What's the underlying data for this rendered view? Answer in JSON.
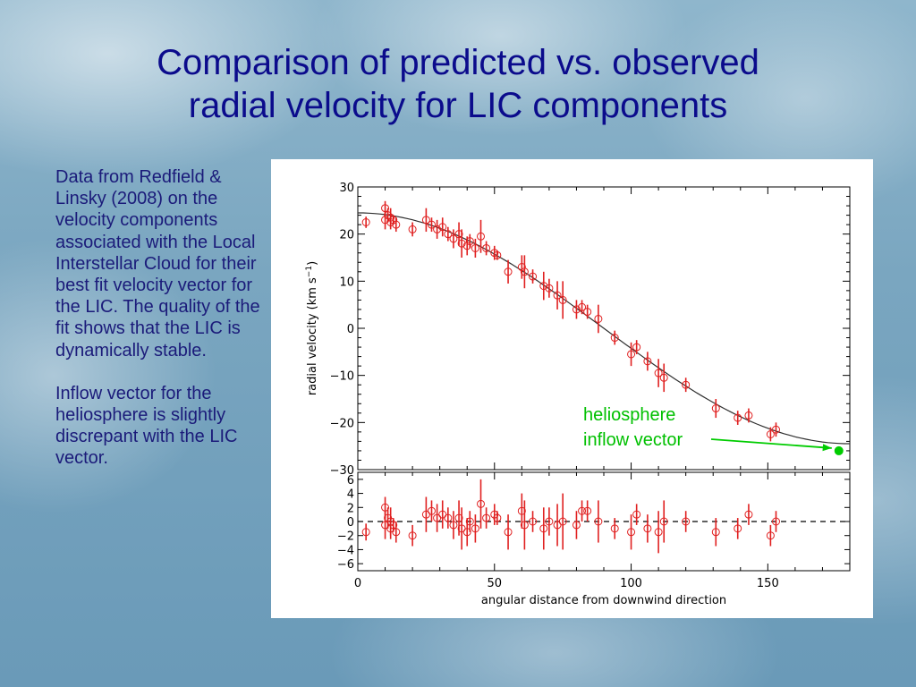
{
  "slide": {
    "title_line1": "Comparison of predicted vs. observed",
    "title_line2": "radial velocity for LIC components",
    "description_p1": "Data from Redfield & Linsky (2008) on the velocity components associated with the Local Interstellar Cloud for their best fit velocity vector for the LIC.  The quality of the fit shows that the LIC is dynamically stable.",
    "description_p2": "Inflow vector for the heliosphere is slightly discrepant with the LIC vector."
  },
  "annotation": {
    "line1": "heliosphere",
    "line2": "inflow vector",
    "color": "#00cc00"
  },
  "chart_data": [
    {
      "type": "scatter",
      "panel": "top",
      "xlabel": "angular distance from downwind direction",
      "ylabel": "radial velocity (km s",
      "ylabel_unit_sup": "−1",
      "ylabel_close": ")",
      "xlim": [
        0,
        180
      ],
      "ylim": [
        -30,
        30
      ],
      "xticks": [
        0,
        50,
        100,
        150
      ],
      "yticks": [
        30,
        20,
        10,
        0,
        -10,
        -20,
        -30
      ],
      "ytick_labels": [
        "30",
        "20",
        "10",
        "0",
        "−10",
        "−20",
        "−30"
      ],
      "point_color": "#e02020",
      "model_curve": {
        "name": "fit",
        "amplitude": 24.5,
        "function": "cos",
        "color": "#303030"
      },
      "heliosphere_point": {
        "x": 176,
        "y": -26,
        "color": "#00cc00"
      },
      "series": [
        {
          "points": [
            {
              "x": 3,
              "y": 22.5,
              "err": 1.2
            },
            {
              "x": 10,
              "y": 25.5,
              "err": 1.5
            },
            {
              "x": 10,
              "y": 23,
              "err": 2
            },
            {
              "x": 11,
              "y": 24,
              "err": 1.5
            },
            {
              "x": 12,
              "y": 23.5,
              "err": 2
            },
            {
              "x": 12,
              "y": 22.5,
              "err": 1.5
            },
            {
              "x": 13,
              "y": 23,
              "err": 1
            },
            {
              "x": 14,
              "y": 22,
              "err": 1.5
            },
            {
              "x": 20,
              "y": 21,
              "err": 1.5
            },
            {
              "x": 25,
              "y": 23,
              "err": 2.5
            },
            {
              "x": 27,
              "y": 22,
              "err": 1.5
            },
            {
              "x": 29,
              "y": 21,
              "err": 2
            },
            {
              "x": 31,
              "y": 21.5,
              "err": 2
            },
            {
              "x": 33,
              "y": 20,
              "err": 1.5
            },
            {
              "x": 35,
              "y": 19,
              "err": 2
            },
            {
              "x": 37,
              "y": 20,
              "err": 2.5
            },
            {
              "x": 38,
              "y": 18,
              "err": 3
            },
            {
              "x": 40,
              "y": 17.5,
              "err": 2
            },
            {
              "x": 41,
              "y": 18.5,
              "err": 1.5
            },
            {
              "x": 43,
              "y": 17,
              "err": 2
            },
            {
              "x": 45,
              "y": 19.5,
              "err": 3.5
            },
            {
              "x": 47,
              "y": 17,
              "err": 1.5
            },
            {
              "x": 50,
              "y": 16,
              "err": 1.5
            },
            {
              "x": 51,
              "y": 15.5,
              "err": 1
            },
            {
              "x": 55,
              "y": 12,
              "err": 2.5
            },
            {
              "x": 60,
              "y": 13,
              "err": 2.5
            },
            {
              "x": 61,
              "y": 12,
              "err": 3.5
            },
            {
              "x": 64,
              "y": 11,
              "err": 1.5
            },
            {
              "x": 68,
              "y": 9,
              "err": 3
            },
            {
              "x": 70,
              "y": 8.5,
              "err": 2
            },
            {
              "x": 73,
              "y": 7,
              "err": 3
            },
            {
              "x": 75,
              "y": 6,
              "err": 4
            },
            {
              "x": 80,
              "y": 4,
              "err": 2
            },
            {
              "x": 82,
              "y": 4.5,
              "err": 1.5
            },
            {
              "x": 84,
              "y": 3.5,
              "err": 1.5
            },
            {
              "x": 88,
              "y": 2,
              "err": 3
            },
            {
              "x": 94,
              "y": -2,
              "err": 1.5
            },
            {
              "x": 100,
              "y": -5.5,
              "err": 2.5
            },
            {
              "x": 102,
              "y": -4,
              "err": 1.5
            },
            {
              "x": 106,
              "y": -7,
              "err": 2
            },
            {
              "x": 110,
              "y": -9.5,
              "err": 3
            },
            {
              "x": 112,
              "y": -10.5,
              "err": 3
            },
            {
              "x": 120,
              "y": -12,
              "err": 1.5
            },
            {
              "x": 131,
              "y": -17,
              "err": 2
            },
            {
              "x": 139,
              "y": -19,
              "err": 1.5
            },
            {
              "x": 143,
              "y": -18.5,
              "err": 1.5
            },
            {
              "x": 151,
              "y": -22.5,
              "err": 1.5
            },
            {
              "x": 153,
              "y": -21.5,
              "err": 1.5
            }
          ]
        }
      ]
    },
    {
      "type": "scatter",
      "panel": "residuals",
      "xlim": [
        0,
        180
      ],
      "ylim": [
        -7,
        7
      ],
      "yticks": [
        6,
        4,
        2,
        0,
        -2,
        -4,
        -6
      ],
      "ytick_labels": [
        "6",
        "4",
        "2",
        "0",
        "−2",
        "−4",
        "−6"
      ],
      "xticks": [
        0,
        50,
        100,
        150
      ],
      "xtick_labels": [
        "0",
        "50",
        "100",
        "150"
      ],
      "zero_line": "dashed",
      "series": [
        {
          "points": [
            {
              "x": 3,
              "y": -1.5,
              "err": 1.2
            },
            {
              "x": 10,
              "y": 2,
              "err": 1.5
            },
            {
              "x": 10,
              "y": -0.5,
              "err": 2
            },
            {
              "x": 11,
              "y": 0.5,
              "err": 1.5
            },
            {
              "x": 12,
              "y": 0,
              "err": 2
            },
            {
              "x": 12,
              "y": -1,
              "err": 1.5
            },
            {
              "x": 13,
              "y": -0.5,
              "err": 1
            },
            {
              "x": 14,
              "y": -1.5,
              "err": 1.5
            },
            {
              "x": 20,
              "y": -2,
              "err": 1.5
            },
            {
              "x": 25,
              "y": 1,
              "err": 2.5
            },
            {
              "x": 27,
              "y": 1.5,
              "err": 1.5
            },
            {
              "x": 29,
              "y": 0.5,
              "err": 2
            },
            {
              "x": 31,
              "y": 1,
              "err": 2
            },
            {
              "x": 33,
              "y": 0.5,
              "err": 1.5
            },
            {
              "x": 35,
              "y": -0.5,
              "err": 2
            },
            {
              "x": 37,
              "y": 0.5,
              "err": 2.5
            },
            {
              "x": 38,
              "y": -1,
              "err": 3
            },
            {
              "x": 40,
              "y": -1.5,
              "err": 2
            },
            {
              "x": 41,
              "y": 0,
              "err": 1.5
            },
            {
              "x": 43,
              "y": -1,
              "err": 2
            },
            {
              "x": 45,
              "y": 2.5,
              "err": 3.5
            },
            {
              "x": 47,
              "y": 0.5,
              "err": 1.5
            },
            {
              "x": 50,
              "y": 1,
              "err": 1.5
            },
            {
              "x": 51,
              "y": 0.5,
              "err": 1
            },
            {
              "x": 55,
              "y": -1.5,
              "err": 2.5
            },
            {
              "x": 60,
              "y": 1.5,
              "err": 2.5
            },
            {
              "x": 61,
              "y": -0.5,
              "err": 3.5
            },
            {
              "x": 64,
              "y": 0,
              "err": 1.5
            },
            {
              "x": 68,
              "y": -1,
              "err": 3
            },
            {
              "x": 70,
              "y": 0,
              "err": 2
            },
            {
              "x": 73,
              "y": -0.5,
              "err": 3
            },
            {
              "x": 75,
              "y": 0,
              "err": 4
            },
            {
              "x": 80,
              "y": -0.5,
              "err": 2
            },
            {
              "x": 82,
              "y": 1.5,
              "err": 1.5
            },
            {
              "x": 84,
              "y": 1.5,
              "err": 1.5
            },
            {
              "x": 88,
              "y": 0,
              "err": 3
            },
            {
              "x": 94,
              "y": -1,
              "err": 1.5
            },
            {
              "x": 100,
              "y": -1.5,
              "err": 2.5
            },
            {
              "x": 102,
              "y": 1,
              "err": 1.5
            },
            {
              "x": 106,
              "y": -1,
              "err": 2
            },
            {
              "x": 110,
              "y": -1.5,
              "err": 3
            },
            {
              "x": 112,
              "y": 0,
              "err": 3
            },
            {
              "x": 120,
              "y": 0,
              "err": 1.5
            },
            {
              "x": 131,
              "y": -1.5,
              "err": 2
            },
            {
              "x": 139,
              "y": -1,
              "err": 1.5
            },
            {
              "x": 143,
              "y": 1,
              "err": 1.5
            },
            {
              "x": 151,
              "y": -2,
              "err": 1.5
            },
            {
              "x": 153,
              "y": 0,
              "err": 1.5
            }
          ]
        }
      ]
    }
  ]
}
